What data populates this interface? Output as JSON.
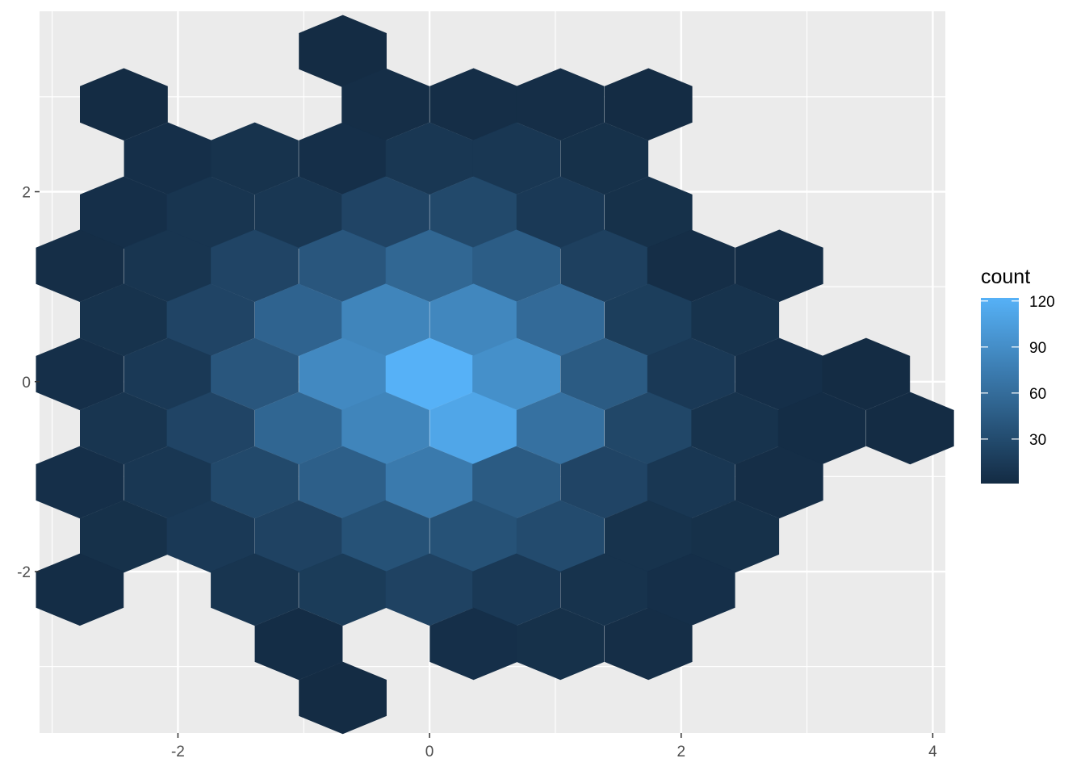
{
  "chart_data": {
    "type": "hexbin",
    "title": "",
    "xlabel": "",
    "ylabel": "",
    "xlim": [
      -3.1,
      4.1
    ],
    "ylim": [
      -3.7,
      3.9
    ],
    "grid": true,
    "x_ticks": [
      -2,
      0,
      2,
      4
    ],
    "x_tick_labels": [
      "-2",
      "0",
      "2",
      "4"
    ],
    "y_ticks": [
      -2,
      0,
      2
    ],
    "y_tick_labels": [
      "-2",
      "0",
      "2"
    ],
    "legend": {
      "title": "count",
      "placement": "right",
      "range": [
        1,
        122
      ],
      "breaks": [
        30,
        60,
        90,
        120
      ],
      "labels": [
        "30",
        "60",
        "90",
        "120"
      ],
      "color_low": "#132B43",
      "color_high": "#56B1F7"
    },
    "bins": [
      {
        "x": -0.69,
        "y": 3.48,
        "count": 2
      },
      {
        "x": -2.43,
        "y": 2.92,
        "count": 2
      },
      {
        "x": -0.35,
        "y": 2.92,
        "count": 4
      },
      {
        "x": 0.35,
        "y": 2.92,
        "count": 4
      },
      {
        "x": 1.04,
        "y": 2.92,
        "count": 4
      },
      {
        "x": 1.74,
        "y": 2.92,
        "count": 2
      },
      {
        "x": -2.08,
        "y": 2.35,
        "count": 5
      },
      {
        "x": -1.39,
        "y": 2.35,
        "count": 8
      },
      {
        "x": -0.69,
        "y": 2.35,
        "count": 5
      },
      {
        "x": 0.0,
        "y": 2.35,
        "count": 12
      },
      {
        "x": 0.69,
        "y": 2.35,
        "count": 12
      },
      {
        "x": 1.39,
        "y": 2.35,
        "count": 6
      },
      {
        "x": -2.43,
        "y": 1.78,
        "count": 5
      },
      {
        "x": -1.74,
        "y": 1.78,
        "count": 10
      },
      {
        "x": -1.04,
        "y": 1.78,
        "count": 12
      },
      {
        "x": -0.35,
        "y": 1.78,
        "count": 24
      },
      {
        "x": 0.35,
        "y": 1.78,
        "count": 28
      },
      {
        "x": 1.04,
        "y": 1.78,
        "count": 14
      },
      {
        "x": 1.74,
        "y": 1.78,
        "count": 6
      },
      {
        "x": -2.78,
        "y": 1.22,
        "count": 4
      },
      {
        "x": -2.08,
        "y": 1.22,
        "count": 10
      },
      {
        "x": -1.39,
        "y": 1.22,
        "count": 24
      },
      {
        "x": -0.69,
        "y": 1.22,
        "count": 40
      },
      {
        "x": 0.0,
        "y": 1.22,
        "count": 55
      },
      {
        "x": 0.69,
        "y": 1.22,
        "count": 46
      },
      {
        "x": 1.39,
        "y": 1.22,
        "count": 20
      },
      {
        "x": 2.08,
        "y": 1.22,
        "count": 4
      },
      {
        "x": 2.78,
        "y": 1.22,
        "count": 3
      },
      {
        "x": -2.43,
        "y": 0.65,
        "count": 8
      },
      {
        "x": -1.74,
        "y": 0.65,
        "count": 24
      },
      {
        "x": -1.04,
        "y": 0.65,
        "count": 52
      },
      {
        "x": -0.35,
        "y": 0.65,
        "count": 82
      },
      {
        "x": 0.35,
        "y": 0.65,
        "count": 84
      },
      {
        "x": 1.04,
        "y": 0.65,
        "count": 58
      },
      {
        "x": 1.74,
        "y": 0.65,
        "count": 18
      },
      {
        "x": 2.43,
        "y": 0.65,
        "count": 8
      },
      {
        "x": -2.78,
        "y": 0.08,
        "count": 5
      },
      {
        "x": -2.08,
        "y": 0.08,
        "count": 14
      },
      {
        "x": -1.39,
        "y": 0.08,
        "count": 40
      },
      {
        "x": -0.69,
        "y": 0.08,
        "count": 86
      },
      {
        "x": 0.0,
        "y": 0.08,
        "count": 122
      },
      {
        "x": 0.69,
        "y": 0.08,
        "count": 92
      },
      {
        "x": 1.39,
        "y": 0.08,
        "count": 44
      },
      {
        "x": 2.08,
        "y": 0.08,
        "count": 14
      },
      {
        "x": 2.78,
        "y": 0.08,
        "count": 5
      },
      {
        "x": 3.47,
        "y": 0.08,
        "count": 2
      },
      {
        "x": -2.43,
        "y": -0.49,
        "count": 10
      },
      {
        "x": -1.74,
        "y": -0.49,
        "count": 24
      },
      {
        "x": -1.04,
        "y": -0.49,
        "count": 54
      },
      {
        "x": -0.35,
        "y": -0.49,
        "count": 82
      },
      {
        "x": 0.35,
        "y": -0.49,
        "count": 112
      },
      {
        "x": 1.04,
        "y": -0.49,
        "count": 64
      },
      {
        "x": 1.74,
        "y": -0.49,
        "count": 26
      },
      {
        "x": 2.43,
        "y": -0.49,
        "count": 8
      },
      {
        "x": 3.12,
        "y": -0.49,
        "count": 3
      },
      {
        "x": 3.82,
        "y": -0.49,
        "count": 2
      },
      {
        "x": -2.78,
        "y": -1.06,
        "count": 5
      },
      {
        "x": -2.08,
        "y": -1.06,
        "count": 12
      },
      {
        "x": -1.39,
        "y": -1.06,
        "count": 28
      },
      {
        "x": -0.69,
        "y": -1.06,
        "count": 48
      },
      {
        "x": 0.0,
        "y": -1.06,
        "count": 72
      },
      {
        "x": 0.69,
        "y": -1.06,
        "count": 44
      },
      {
        "x": 1.39,
        "y": -1.06,
        "count": 24
      },
      {
        "x": 2.08,
        "y": -1.06,
        "count": 12
      },
      {
        "x": 2.78,
        "y": -1.06,
        "count": 4
      },
      {
        "x": -2.43,
        "y": -1.63,
        "count": 6
      },
      {
        "x": -1.74,
        "y": -1.63,
        "count": 14
      },
      {
        "x": -1.04,
        "y": -1.63,
        "count": 22
      },
      {
        "x": -0.35,
        "y": -1.63,
        "count": 36
      },
      {
        "x": 0.35,
        "y": -1.63,
        "count": 36
      },
      {
        "x": 1.04,
        "y": -1.63,
        "count": 30
      },
      {
        "x": 1.74,
        "y": -1.63,
        "count": 8
      },
      {
        "x": 2.43,
        "y": -1.63,
        "count": 6
      },
      {
        "x": -2.78,
        "y": -2.19,
        "count": 3
      },
      {
        "x": -1.39,
        "y": -2.19,
        "count": 10
      },
      {
        "x": -0.69,
        "y": -2.19,
        "count": 16
      },
      {
        "x": 0.0,
        "y": -2.19,
        "count": 22
      },
      {
        "x": 0.69,
        "y": -2.19,
        "count": 14
      },
      {
        "x": 1.39,
        "y": -2.19,
        "count": 8
      },
      {
        "x": 2.08,
        "y": -2.19,
        "count": 5
      },
      {
        "x": -1.04,
        "y": -2.76,
        "count": 3
      },
      {
        "x": 0.35,
        "y": -2.76,
        "count": 5
      },
      {
        "x": 1.04,
        "y": -2.76,
        "count": 6
      },
      {
        "x": 1.74,
        "y": -2.76,
        "count": 4
      },
      {
        "x": -0.69,
        "y": -3.33,
        "count": 2
      }
    ]
  }
}
